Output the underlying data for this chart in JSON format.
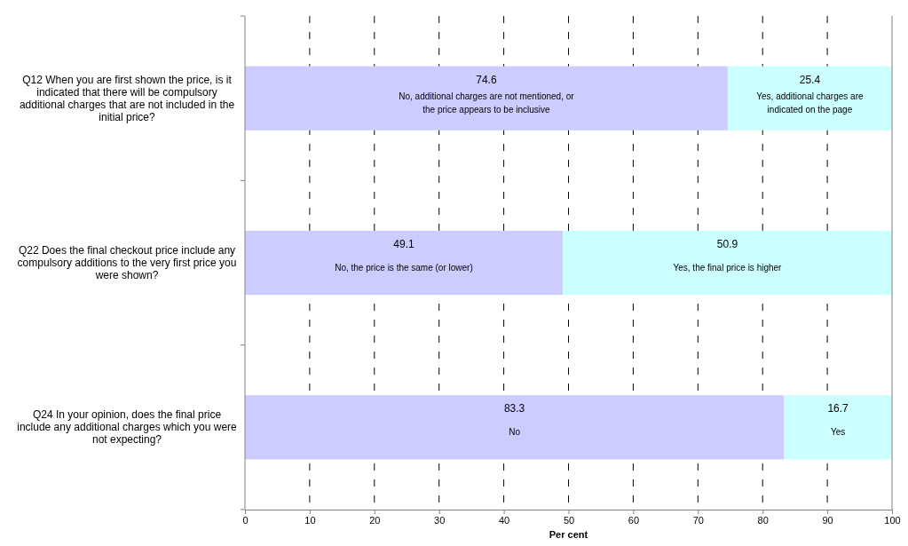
{
  "chart_data": {
    "type": "bar",
    "orientation": "horizontal",
    "stacked": true,
    "categories": [
      "Q12 When you are first shown the price, is it indicated that there will be compulsory additional charges that are not included in the initial price?",
      "Q22 Does the final checkout price include any compulsory additions to the very first price you were shown?",
      "Q24 In your opinion, does the final price include any additional charges which you were not expecting?"
    ],
    "series": [
      {
        "color": "#ccccff",
        "values": [
          74.6,
          49.1,
          83.3
        ]
      },
      {
        "color": "#ccffff",
        "values": [
          25.4,
          50.9,
          16.7
        ]
      }
    ],
    "data_labels": true,
    "annotations": [
      "No, additional charges are not mentioned, or the price appears to be inclusive",
      "Yes, additional charges are indicated on the page",
      "No, the price is the same (or lower)",
      "Yes, the final price is higher",
      "No",
      "Yes"
    ],
    "xlabel": "Per cent",
    "xlim": [
      0,
      100
    ],
    "xticks": [
      0,
      10,
      20,
      30,
      40,
      50,
      60,
      70,
      80,
      90,
      100
    ],
    "grid": "x"
  }
}
